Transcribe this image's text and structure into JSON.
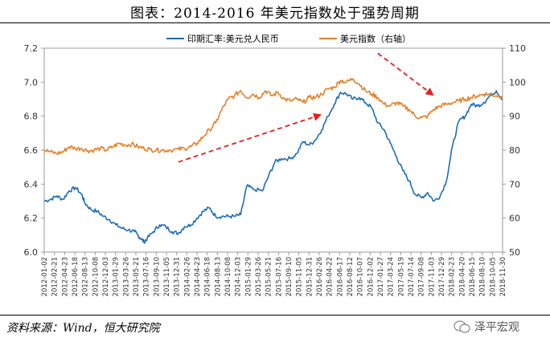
{
  "header": {
    "title": "图表：2014-2016 年美元指数处于强势周期"
  },
  "footer": {
    "source": "资料来源：Wind，恒大研究院",
    "watermark": "泽平宏观"
  },
  "colors": {
    "blue": "#1f6db3",
    "orange": "#e4802a",
    "arrow": "#e32020",
    "axis": "#999999"
  },
  "chart_data": {
    "type": "line",
    "legend": [
      {
        "name": "印期汇率:美元兑人民币",
        "color": "#1f6db3"
      },
      {
        "name": "美元指数（右轴）",
        "color": "#e4802a"
      }
    ],
    "legend_position": "top-center",
    "y_left": {
      "range": [
        6.0,
        7.2
      ],
      "ticks": [
        "6.0",
        "6.2",
        "6.4",
        "6.6",
        "6.8",
        "7.0",
        "7.2"
      ]
    },
    "y_right": {
      "range": [
        50,
        110
      ],
      "ticks": [
        "50",
        "60",
        "70",
        "80",
        "90",
        "100",
        "110"
      ]
    },
    "x_ticks": [
      "2012-01-02",
      "2012-02-21",
      "2012-04-23",
      "2012-06-18",
      "2012-08-13",
      "2012-10-08",
      "2012-12-03",
      "2013-01-29",
      "2013-03-26",
      "2013-05-21",
      "2013-07-16",
      "2013-09-10",
      "2013-11-05",
      "2013-12-31",
      "2014-02-26",
      "2014-04-23",
      "2014-06-18",
      "2014-08-13",
      "2014-10-08",
      "2014-12-03",
      "2015-01-29",
      "2015-03-26",
      "2015-05-21",
      "2015-07-16",
      "2015-09-10",
      "2015-11-05",
      "2015-12-31",
      "2016-02-26",
      "2016-04-22",
      "2016-06-17",
      "2016-08-12",
      "2016-10-07",
      "2016-12-02",
      "2017-01-27",
      "2017-03-24",
      "2017-05-19",
      "2017-07-14",
      "2017-09-08",
      "2017-11-03",
      "2017-12-29",
      "2018-02-23",
      "2018-04-20",
      "2018-06-15",
      "2018-08-10",
      "2018-10-05",
      "2018-11-30"
    ],
    "series": [
      {
        "name": "印期汇率:美元兑人民币",
        "axis": "left",
        "values": [
          [
            0,
            6.3
          ],
          [
            2,
            6.31
          ],
          [
            4,
            6.33
          ],
          [
            6,
            6.31
          ],
          [
            8,
            6.36
          ],
          [
            10,
            6.38
          ],
          [
            12,
            6.34
          ],
          [
            13,
            6.29
          ],
          [
            15,
            6.25
          ],
          [
            17,
            6.24
          ],
          [
            19,
            6.21
          ],
          [
            21,
            6.19
          ],
          [
            23,
            6.16
          ],
          [
            25,
            6.14
          ],
          [
            27,
            6.13
          ],
          [
            29,
            6.12
          ],
          [
            30,
            6.1
          ],
          [
            31,
            6.08
          ],
          [
            32,
            6.06
          ],
          [
            33,
            6.08
          ],
          [
            35,
            6.12
          ],
          [
            37,
            6.16
          ],
          [
            39,
            6.15
          ],
          [
            41,
            6.12
          ],
          [
            43,
            6.11
          ],
          [
            45,
            6.15
          ],
          [
            47,
            6.16
          ],
          [
            49,
            6.2
          ],
          [
            51,
            6.24
          ],
          [
            53,
            6.26
          ],
          [
            55,
            6.21
          ],
          [
            57,
            6.21
          ],
          [
            59,
            6.21
          ],
          [
            61,
            6.21
          ],
          [
            63,
            6.22
          ],
          [
            65,
            6.39
          ],
          [
            67,
            6.37
          ],
          [
            70,
            6.36
          ],
          [
            72,
            6.45
          ],
          [
            74,
            6.53
          ],
          [
            76,
            6.55
          ],
          [
            79,
            6.55
          ],
          [
            81,
            6.58
          ],
          [
            83,
            6.65
          ],
          [
            85,
            6.63
          ],
          [
            87,
            6.66
          ],
          [
            89,
            6.72
          ],
          [
            91,
            6.8
          ],
          [
            93,
            6.87
          ],
          [
            95,
            6.94
          ],
          [
            97,
            6.93
          ],
          [
            99,
            6.9
          ],
          [
            101,
            6.91
          ],
          [
            103,
            6.88
          ],
          [
            105,
            6.85
          ],
          [
            107,
            6.76
          ],
          [
            109,
            6.72
          ],
          [
            111,
            6.64
          ],
          [
            113,
            6.56
          ],
          [
            115,
            6.48
          ],
          [
            117,
            6.42
          ],
          [
            119,
            6.34
          ],
          [
            121,
            6.32
          ],
          [
            123,
            6.35
          ],
          [
            125,
            6.3
          ],
          [
            127,
            6.33
          ],
          [
            129,
            6.42
          ],
          [
            131,
            6.63
          ],
          [
            133,
            6.77
          ],
          [
            135,
            6.8
          ],
          [
            137,
            6.87
          ],
          [
            139,
            6.86
          ],
          [
            141,
            6.88
          ],
          [
            143,
            6.92
          ],
          [
            145,
            6.95
          ],
          [
            147,
            6.9
          ]
        ]
      },
      {
        "name": "美元指数（右轴）",
        "axis": "right",
        "values": [
          [
            0,
            80.0
          ],
          [
            2,
            79.5
          ],
          [
            4,
            79.0
          ],
          [
            6,
            79.5
          ],
          [
            8,
            81.0
          ],
          [
            10,
            80.5
          ],
          [
            12,
            80.5
          ],
          [
            14,
            79.8
          ],
          [
            16,
            80.0
          ],
          [
            18,
            80.5
          ],
          [
            20,
            80.0
          ],
          [
            22,
            81.0
          ],
          [
            24,
            82.0
          ],
          [
            26,
            81.5
          ],
          [
            28,
            81.8
          ],
          [
            30,
            81.0
          ],
          [
            32,
            80.5
          ],
          [
            34,
            80.2
          ],
          [
            36,
            80.0
          ],
          [
            38,
            80.0
          ],
          [
            40,
            80.0
          ],
          [
            43,
            80.2
          ],
          [
            45,
            80.5
          ],
          [
            47,
            81.0
          ],
          [
            49,
            82.0
          ],
          [
            51,
            84.0
          ],
          [
            53,
            86.0
          ],
          [
            55,
            88.0
          ],
          [
            57,
            92.0
          ],
          [
            59,
            95.0
          ],
          [
            61,
            96.0
          ],
          [
            63,
            97.5
          ],
          [
            65,
            95.5
          ],
          [
            67,
            96.5
          ],
          [
            69,
            95.5
          ],
          [
            71,
            97.5
          ],
          [
            73,
            96.0
          ],
          [
            75,
            97.0
          ],
          [
            77,
            95.0
          ],
          [
            79,
            94.5
          ],
          [
            81,
            95.0
          ],
          [
            83,
            94.0
          ],
          [
            85,
            95.5
          ],
          [
            87,
            95.5
          ],
          [
            89,
            96.5
          ],
          [
            91,
            98.0
          ],
          [
            93,
            98.5
          ],
          [
            95,
            100.5
          ],
          [
            97,
            100.0
          ],
          [
            99,
            101.0
          ],
          [
            101,
            99.5
          ],
          [
            103,
            97.5
          ],
          [
            105,
            96.5
          ],
          [
            107,
            95.5
          ],
          [
            109,
            93.5
          ],
          [
            111,
            93.0
          ],
          [
            113,
            94.0
          ],
          [
            115,
            93.0
          ],
          [
            117,
            92.0
          ],
          [
            119,
            90.0
          ],
          [
            121,
            89.5
          ],
          [
            123,
            90.0
          ],
          [
            125,
            92.0
          ],
          [
            127,
            93.0
          ],
          [
            129,
            93.5
          ],
          [
            131,
            94.0
          ],
          [
            133,
            94.5
          ],
          [
            135,
            95.0
          ],
          [
            137,
            95.5
          ],
          [
            139,
            96.0
          ],
          [
            141,
            96.5
          ],
          [
            143,
            96.5
          ],
          [
            145,
            96.0
          ],
          [
            147,
            96.0
          ]
        ]
      }
    ],
    "x_count": 148,
    "annotations": [
      {
        "type": "dashed-arrow",
        "from": [
          43,
          6.53
        ],
        "to": [
          89,
          6.81
        ]
      },
      {
        "type": "dashed-arrow",
        "from": [
          107,
          7.17
        ],
        "to": [
          125,
          6.92
        ]
      }
    ]
  }
}
